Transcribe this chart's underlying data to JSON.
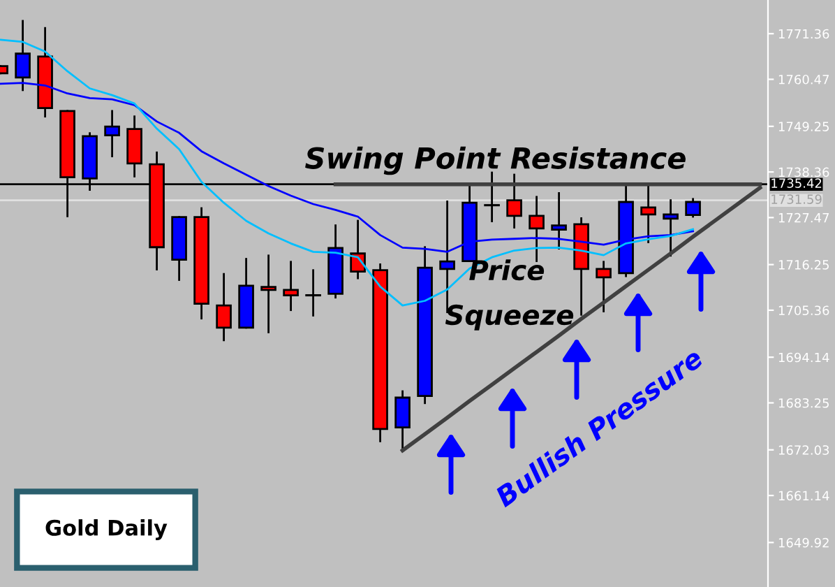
{
  "chart_data": {
    "type": "candlestick",
    "categories": [
      null,
      null,
      null,
      null,
      null,
      null,
      null,
      null,
      null,
      null,
      null,
      null,
      null,
      null,
      null,
      null,
      null,
      null,
      null,
      null,
      null,
      null,
      null,
      null,
      null,
      null,
      null,
      null,
      null,
      null,
      null,
      null,
      null,
      null,
      null
    ],
    "ohlc": [
      [
        1763.6,
        1763.6,
        1761.9,
        1761.9
      ],
      [
        1760.9,
        1774.4,
        1757.9,
        1766.6
      ],
      [
        1765.9,
        1772.7,
        1751.6,
        1753.6
      ],
      [
        1752.9,
        1752.9,
        1727.8,
        1737.1
      ],
      [
        1736.8,
        1747.6,
        1734.1,
        1746.9
      ],
      [
        1747.1,
        1752.9,
        1742.1,
        1749.2
      ],
      [
        1748.6,
        1751.6,
        1737.3,
        1740.4
      ],
      [
        1740.2,
        1743.0,
        1715.1,
        1720.4
      ],
      [
        1717.4,
        1727.6,
        1712.6,
        1727.6
      ],
      [
        1727.6,
        1729.7,
        1703.4,
        1706.9
      ],
      [
        1706.5,
        1714.0,
        1698.2,
        1701.2
      ],
      [
        1701.2,
        1717.6,
        1701.2,
        1711.2
      ],
      [
        1710.9,
        1718.4,
        1700.1,
        1710.2
      ],
      [
        1710.2,
        1716.9,
        1705.4,
        1708.9
      ],
      [
        1708.9,
        1714.9,
        1704.1,
        1708.9
      ],
      [
        1709.3,
        1725.6,
        1708.4,
        1720.2
      ],
      [
        1718.9,
        1726.7,
        1713.0,
        1714.6
      ],
      [
        1714.9,
        1716.3,
        1674.1,
        1677.0
      ],
      [
        1677.4,
        1686.0,
        1671.8,
        1684.5
      ],
      [
        1684.9,
        1720.4,
        1683.2,
        1715.5
      ],
      [
        1715.2,
        1731.3,
        1704.9,
        1717.0
      ],
      [
        1717.1,
        1734.9,
        1717.1,
        1731.0
      ],
      [
        1730.4,
        1738.2,
        1726.6,
        1730.4
      ],
      [
        1731.6,
        1737.7,
        1725.1,
        1727.9
      ],
      [
        1727.9,
        1732.4,
        1717.1,
        1724.9
      ],
      [
        1724.6,
        1733.3,
        1720.1,
        1725.6
      ],
      [
        1725.9,
        1727.3,
        1704.3,
        1715.2
      ],
      [
        1715.2,
        1716.9,
        1705.1,
        1713.2
      ],
      [
        1714.2,
        1734.9,
        1713.5,
        1731.2
      ],
      [
        1729.9,
        1735.1,
        1721.6,
        1728.2
      ],
      [
        1727.2,
        1731.6,
        1718.4,
        1728.2
      ],
      [
        1728.1,
        1731.9,
        1727.7,
        1731.2
      ],
      null,
      null,
      null
    ],
    "colors": [
      "#ff0000",
      "#0000ff",
      "#ff0000",
      "#ff0000",
      "#0000ff",
      "#0000ff",
      "#ff0000",
      "#ff0000",
      "#0000ff",
      "#ff0000",
      "#ff0000",
      "#0000ff",
      "#ff0000",
      "#ff0000",
      "#ff0000",
      "#0000ff",
      "#ff0000",
      "#ff0000",
      "#0000ff",
      "#0000ff",
      "#0000ff",
      "#0000ff",
      "#ff0000",
      "#ff0000",
      "#ff0000",
      "#0000ff",
      "#ff0000",
      "#ff0000",
      "#0000ff",
      "#ff0000",
      "#0000ff",
      "#0000ff",
      null,
      null,
      null
    ],
    "series": [
      {
        "type": "line",
        "color": "#0000ff",
        "values": [
          1759.4,
          1759.6,
          1759.0,
          1757.1,
          1756.0,
          1755.7,
          1754.3,
          1750.4,
          1747.7,
          1743.3,
          1740.4,
          1737.7,
          1735.0,
          1732.7,
          1730.7,
          1729.3,
          1727.7,
          1723.3,
          1720.3,
          1720.0,
          1719.3,
          1721.7,
          1722.2,
          1722.4,
          1722.6,
          1722.4,
          1721.7,
          1721.0,
          1722.2,
          1723.0,
          1723.3,
          1724.2,
          null,
          null,
          null
        ]
      },
      {
        "type": "line",
        "color": "#00bfff",
        "values": [
          1769.9,
          1769.4,
          1767.1,
          1762.4,
          1758.3,
          1756.7,
          1754.7,
          1748.7,
          1743.8,
          1736.0,
          1731.0,
          1726.7,
          1723.7,
          1721.3,
          1719.3,
          1719.1,
          1718.0,
          1711.0,
          1706.5,
          1707.6,
          1710.3,
          1715.3,
          1718.0,
          1719.6,
          1720.2,
          1720.3,
          1719.6,
          1718.5,
          1721.3,
          1722.3,
          1723.1,
          1724.7,
          null,
          null,
          null
        ]
      },
      {
        "type": "line",
        "color": "#404040",
        "values": [
          null,
          null,
          null,
          null,
          null,
          null,
          null,
          null,
          null,
          null,
          null,
          null,
          null,
          null,
          null,
          null,
          null,
          null,
          1671.9,
          1675.8,
          1679.7,
          1683.7,
          1687.6,
          1691.5,
          1695.4,
          1699.3,
          1703.3,
          1707.2,
          1711.1,
          1715.0,
          1718.9,
          1722.9,
          1726.8,
          1730.7,
          1734.6
        ]
      },
      {
        "type": "line",
        "color": "#404040",
        "values": [
          null,
          null,
          null,
          null,
          null,
          null,
          null,
          null,
          null,
          null,
          null,
          null,
          null,
          null,
          null,
          1735.4,
          1735.4,
          1735.4,
          1735.4,
          1735.4,
          1735.4,
          1735.4,
          1735.4,
          1735.4,
          1735.4,
          1735.4,
          1735.4,
          1735.4,
          1735.4,
          1735.4,
          1735.4,
          1735.4,
          1735.4,
          1735.4,
          1735.4
        ]
      }
    ],
    "ylim": [
      1639.3,
      1779.4
    ],
    "yticks": [
      1771.36,
      1760.47,
      1749.25,
      1738.36,
      1727.47,
      1716.25,
      1705.36,
      1694.14,
      1683.25,
      1672.03,
      1661.14,
      1649.92
    ],
    "ref_lines": [
      {
        "axis": "y",
        "value": 1735.42,
        "label": "1735.42",
        "color": "#000000"
      },
      {
        "axis": "y",
        "value": 1731.59,
        "label": "1731.59",
        "color": "#e0e0e0"
      }
    ],
    "annotations": [
      "Swing Point Resistance",
      "Price",
      "Squeeze",
      "Bullish Pressure",
      "Gold Daily"
    ],
    "grid": false
  }
}
